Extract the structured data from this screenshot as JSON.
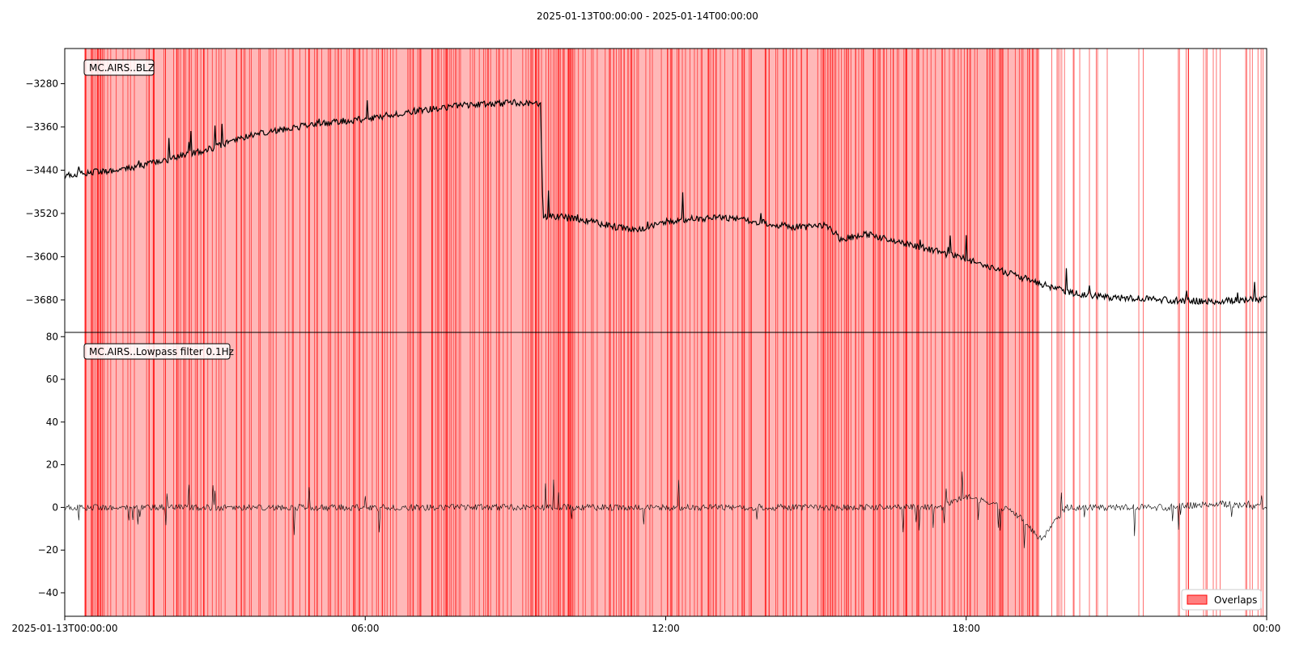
{
  "figure": {
    "title": "2025-01-13T00:00:00  -  2025-01-14T00:00:00",
    "legend_label": "Overlaps"
  },
  "colors": {
    "overlap": "#ff0000",
    "trace": "#000000",
    "axes": "#000000"
  },
  "chart_data": [
    {
      "type": "line",
      "label": "MC.AIRS..BLZ",
      "x_unit": "hours since 2025-01-13T00:00:00",
      "xlim": [
        0,
        24
      ],
      "ylim": [
        -3740,
        -3215
      ],
      "yticks": [
        -3280,
        -3360,
        -3440,
        -3520,
        -3600,
        -3680
      ],
      "overlap_region": [
        0.4,
        19.45
      ],
      "series": [
        {
          "x": [
            0,
            0.5,
            1,
            1.5,
            2,
            2.5,
            3,
            3.5,
            4,
            4.5,
            5,
            5.5,
            6,
            6.5,
            7,
            7.5,
            8,
            8.5,
            9,
            9.5,
            9.55,
            10,
            10.5,
            11,
            11.5,
            12,
            12.5,
            13,
            13.5,
            14,
            14.5,
            15,
            15.2,
            15.5,
            16,
            16.5,
            17,
            17.5,
            18,
            18.5,
            19,
            19.5,
            20,
            20.5,
            21,
            21.5,
            22,
            22.5,
            23,
            23.5,
            24
          ],
          "y": [
            -3450,
            -3444,
            -3440,
            -3432,
            -3422,
            -3410,
            -3398,
            -3380,
            -3370,
            -3362,
            -3355,
            -3350,
            -3345,
            -3338,
            -3330,
            -3325,
            -3320,
            -3318,
            -3315,
            -3318,
            -3525,
            -3528,
            -3535,
            -3545,
            -3550,
            -3535,
            -3530,
            -3528,
            -3530,
            -3538,
            -3545,
            -3545,
            -3540,
            -3568,
            -3558,
            -3570,
            -3582,
            -3592,
            -3605,
            -3620,
            -3635,
            -3650,
            -3665,
            -3672,
            -3676,
            -3678,
            -3680,
            -3682,
            -3682,
            -3680,
            -3678
          ]
        }
      ]
    },
    {
      "type": "line",
      "label": "MC.AIRS..Lowpass filter 0.1Hz",
      "x_unit": "hours since 2025-01-13T00:00:00",
      "xlim": [
        0,
        24
      ],
      "ylim": [
        -51,
        82
      ],
      "yticks": [
        80,
        60,
        40,
        20,
        0,
        -20,
        -40
      ],
      "xticks": [
        0,
        6,
        12,
        18,
        24
      ],
      "xticklabels": [
        "2025-01-13T00:00:00",
        "06:00",
        "12:00",
        "18:00",
        "00:00"
      ],
      "overlap_region": [
        0.4,
        19.45
      ],
      "series": [
        {
          "x": [
            0,
            1,
            2,
            3,
            4,
            5,
            6,
            7,
            8,
            9,
            10,
            11,
            12,
            13,
            14,
            15,
            16,
            17,
            17.5,
            18,
            18.5,
            19,
            19.5,
            20,
            21,
            22,
            23,
            24
          ],
          "y": [
            0,
            0,
            0,
            0,
            0,
            0,
            0,
            0,
            0,
            0,
            0,
            0,
            0,
            0,
            0,
            0,
            0,
            0,
            0,
            5,
            2,
            -3,
            -15,
            0,
            0,
            0,
            2,
            0
          ]
        }
      ]
    }
  ]
}
